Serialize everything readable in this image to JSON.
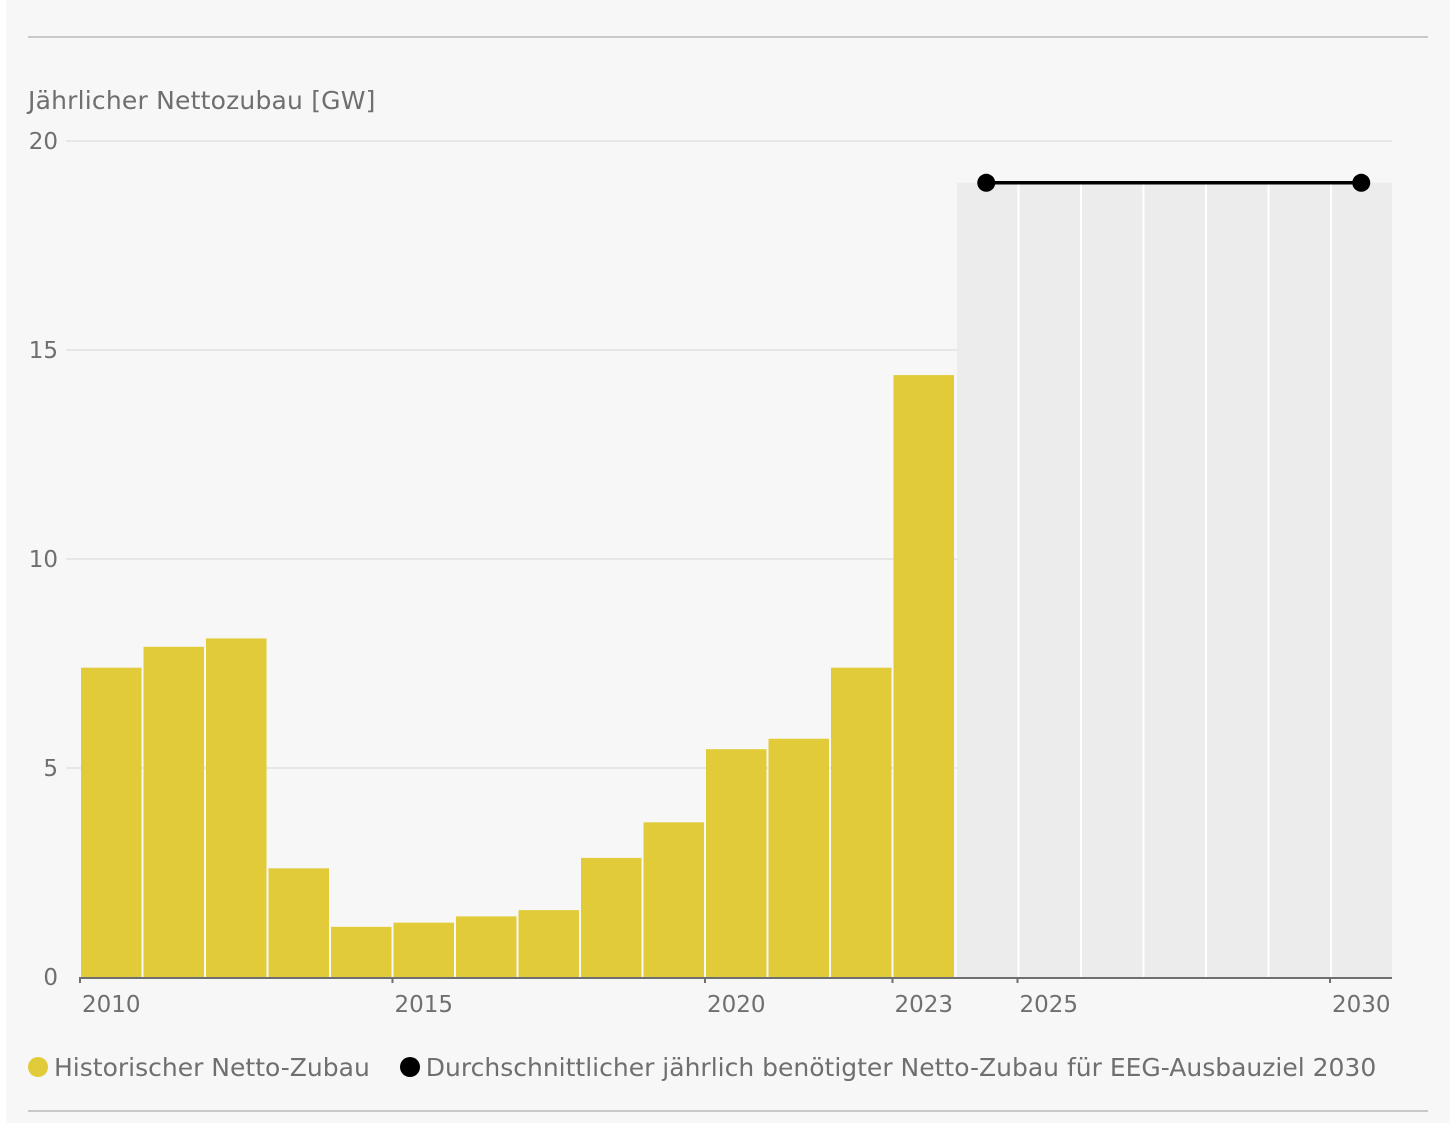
{
  "chart_data": {
    "type": "bar",
    "ylabel": "Jährlicher Nettozubau [GW]",
    "ylim": [
      0,
      20
    ],
    "yticks": [
      0,
      5,
      10,
      15,
      20
    ],
    "xlim": [
      2010,
      2030
    ],
    "xticks": [
      "2010",
      "2015",
      "2020",
      "2023",
      "2025",
      "2030"
    ],
    "grid": true,
    "legend_position": "bottom-left",
    "series": [
      {
        "name": "Historischer Netto-Zubau",
        "kind": "bar",
        "color": "#e2cb39",
        "points": [
          {
            "year": 2010,
            "value": 7.4
          },
          {
            "year": 2011,
            "value": 7.9
          },
          {
            "year": 2012,
            "value": 8.1
          },
          {
            "year": 2013,
            "value": 2.6
          },
          {
            "year": 2014,
            "value": 1.2
          },
          {
            "year": 2015,
            "value": 1.3
          },
          {
            "year": 2016,
            "value": 1.45
          },
          {
            "year": 2017,
            "value": 1.6
          },
          {
            "year": 2018,
            "value": 2.85
          },
          {
            "year": 2019,
            "value": 3.7
          },
          {
            "year": 2020,
            "value": 5.45
          },
          {
            "year": 2021,
            "value": 5.7
          },
          {
            "year": 2022,
            "value": 7.4
          },
          {
            "year": 2023,
            "value": 14.4
          }
        ]
      },
      {
        "name": "Durchschnittlicher jährlich benötigter Netto-Zubau für EEG-Ausbauziel 2030",
        "kind": "line",
        "color": "#000000",
        "points": [
          {
            "year": 2024,
            "value": 19.0
          },
          {
            "year": 2030,
            "value": 19.0
          }
        ]
      }
    ],
    "target_band": {
      "from_year": 2024,
      "to_year": 2030,
      "value": 19.0,
      "color": "#ececec"
    }
  }
}
